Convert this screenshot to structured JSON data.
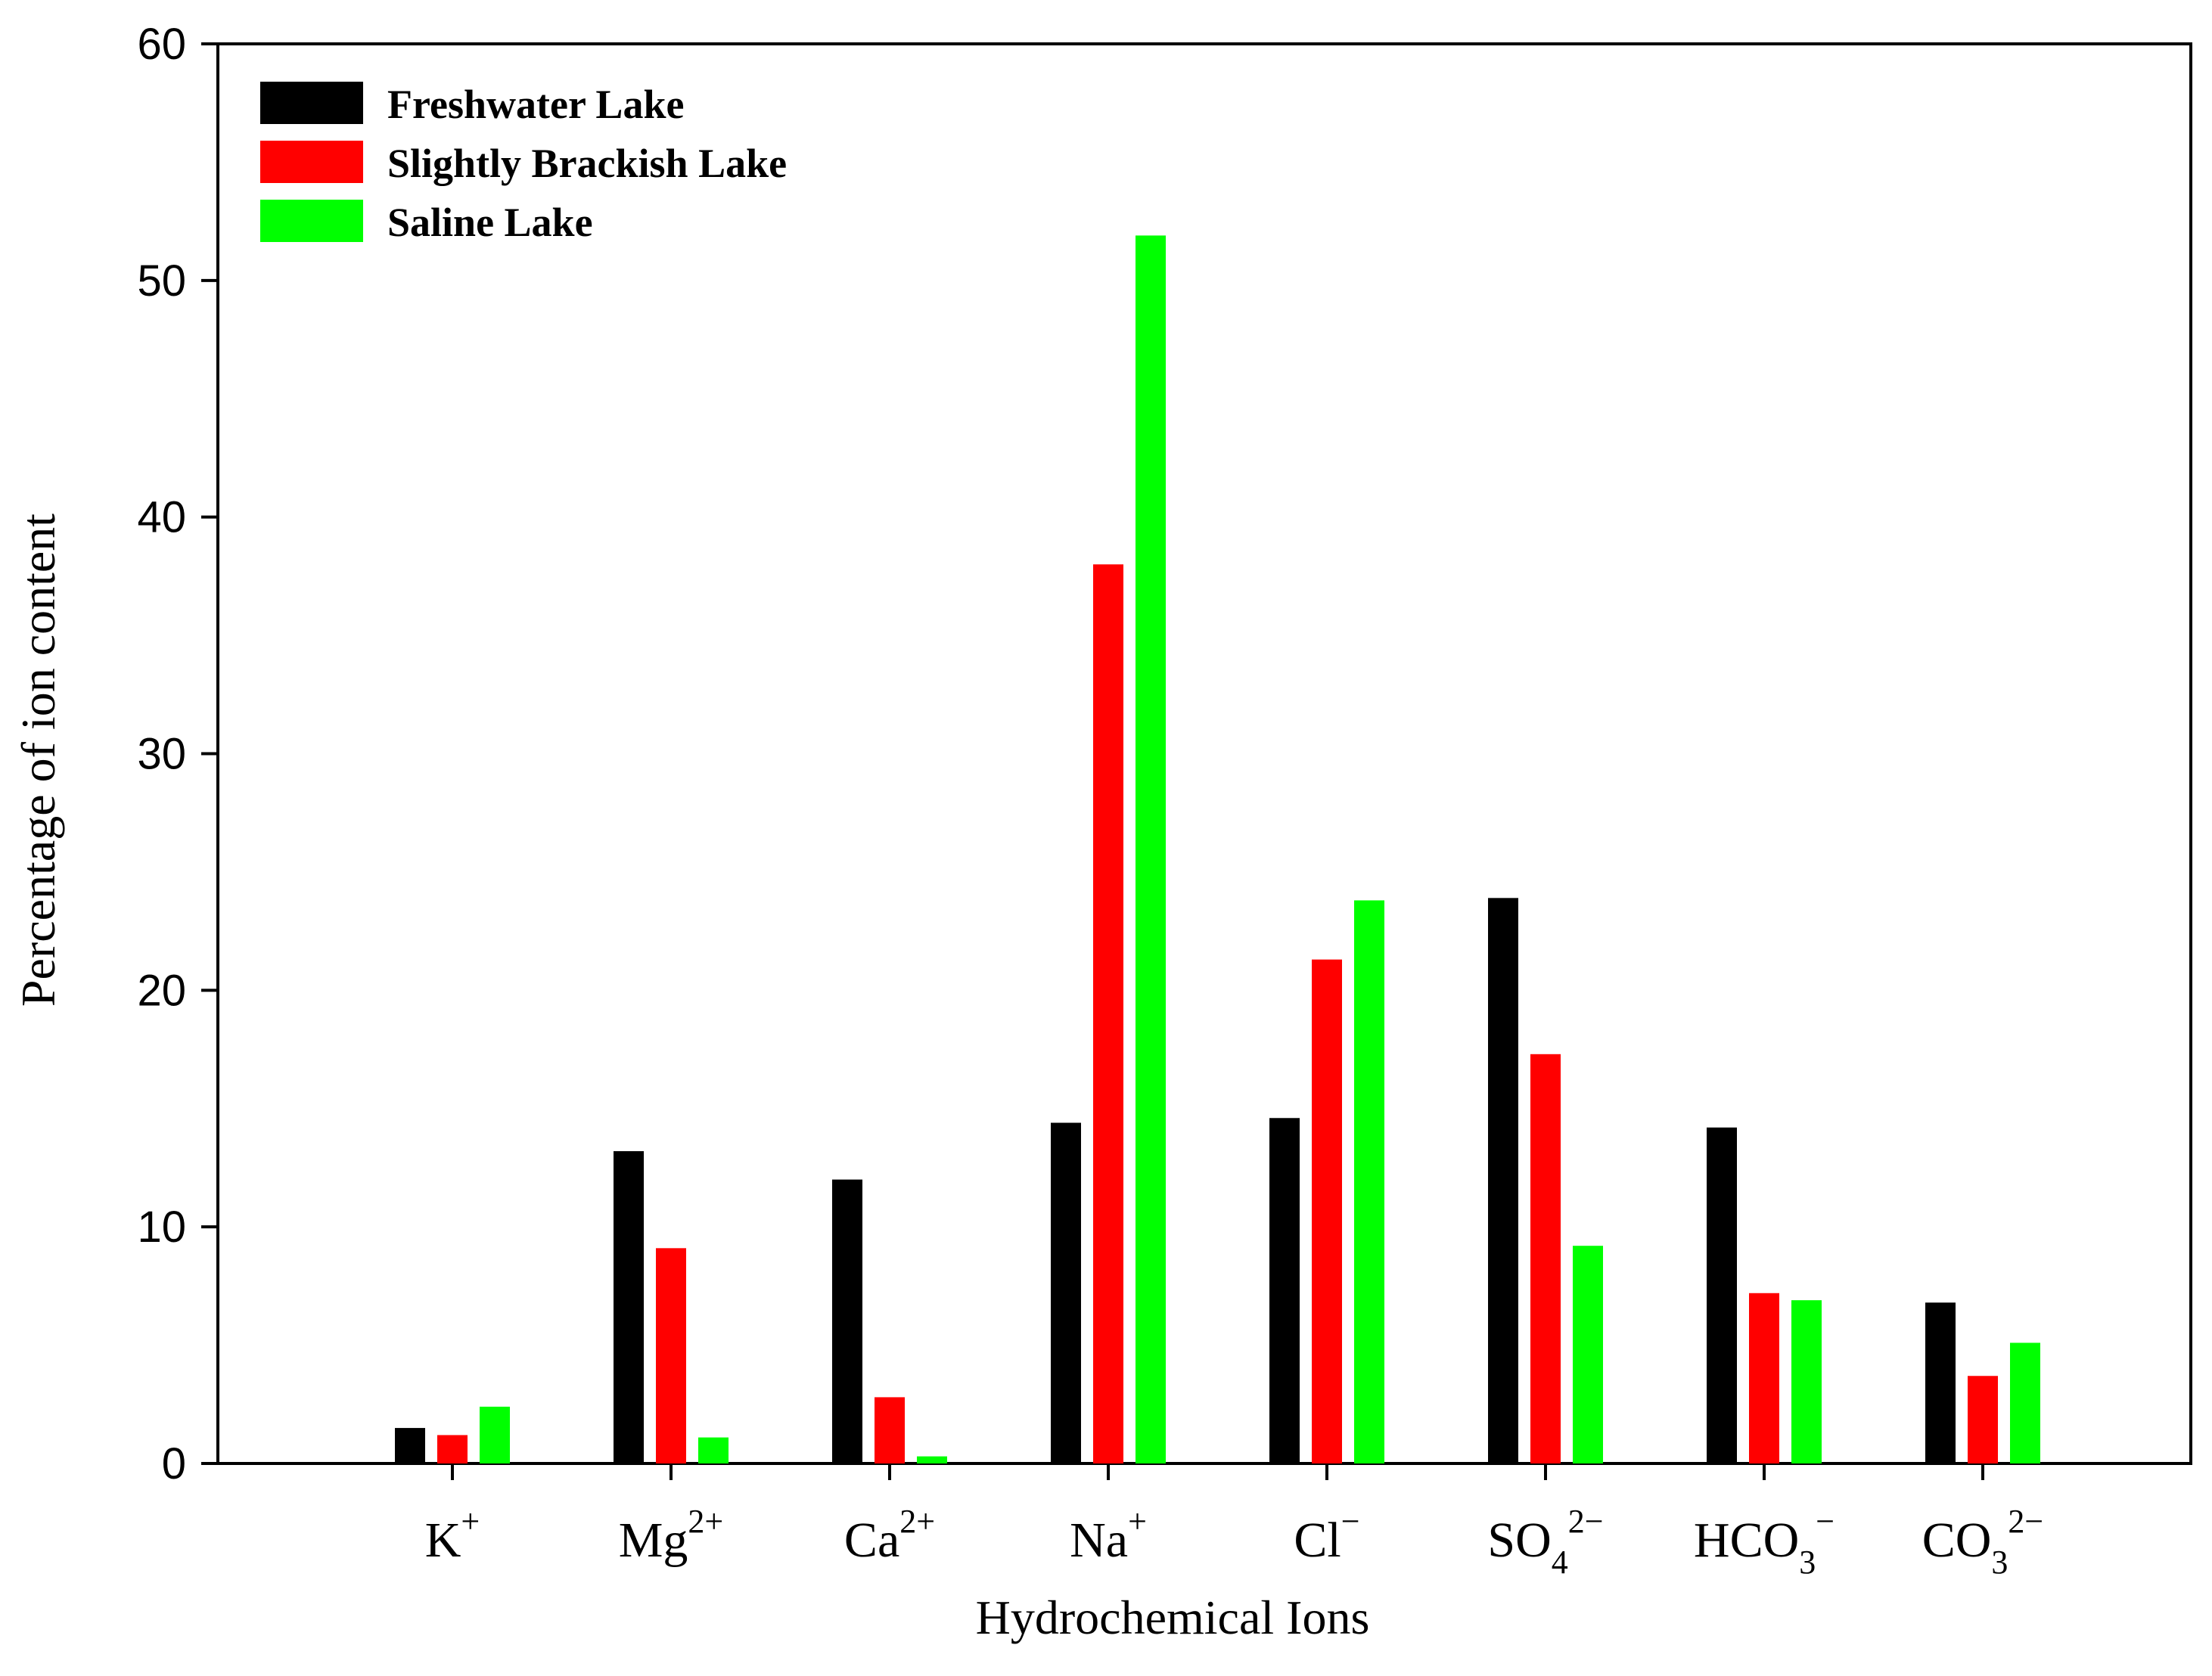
{
  "chart_data": {
    "type": "bar",
    "categories": [
      {
        "base": "K",
        "sub": "",
        "sup": "+"
      },
      {
        "base": "Mg",
        "sub": "",
        "sup": "2+"
      },
      {
        "base": "Ca",
        "sub": "",
        "sup": "2+"
      },
      {
        "base": "Na",
        "sub": "",
        "sup": "+"
      },
      {
        "base": "Cl",
        "sub": "",
        "sup": "−"
      },
      {
        "base": "SO",
        "sub": "4",
        "sup": "2−"
      },
      {
        "base": "HCO",
        "sub": "3",
        "sup": "−"
      },
      {
        "base": "CO",
        "sub": "3",
        "sup": "2−"
      }
    ],
    "series": [
      {
        "name": "Freshwater Lake",
        "color": "#000000",
        "values": [
          1.5,
          13.2,
          12.0,
          14.4,
          14.6,
          23.9,
          14.2,
          6.8
        ]
      },
      {
        "name": "Slightly Brackish Lake",
        "color": "#ff0000",
        "values": [
          1.2,
          9.1,
          2.8,
          38.0,
          21.3,
          17.3,
          7.2,
          3.7
        ]
      },
      {
        "name": "Saline Lake",
        "color": "#00ff00",
        "values": [
          2.4,
          1.1,
          0.3,
          51.9,
          23.8,
          9.2,
          6.9,
          5.1
        ]
      }
    ],
    "xlabel": "Hydrochemical Ions",
    "ylabel": "Percentage of ion content",
    "ylim": [
      0,
      60
    ],
    "yticks": [
      0,
      10,
      20,
      30,
      40,
      50,
      60
    ],
    "grid": false,
    "legend": "top-left"
  }
}
